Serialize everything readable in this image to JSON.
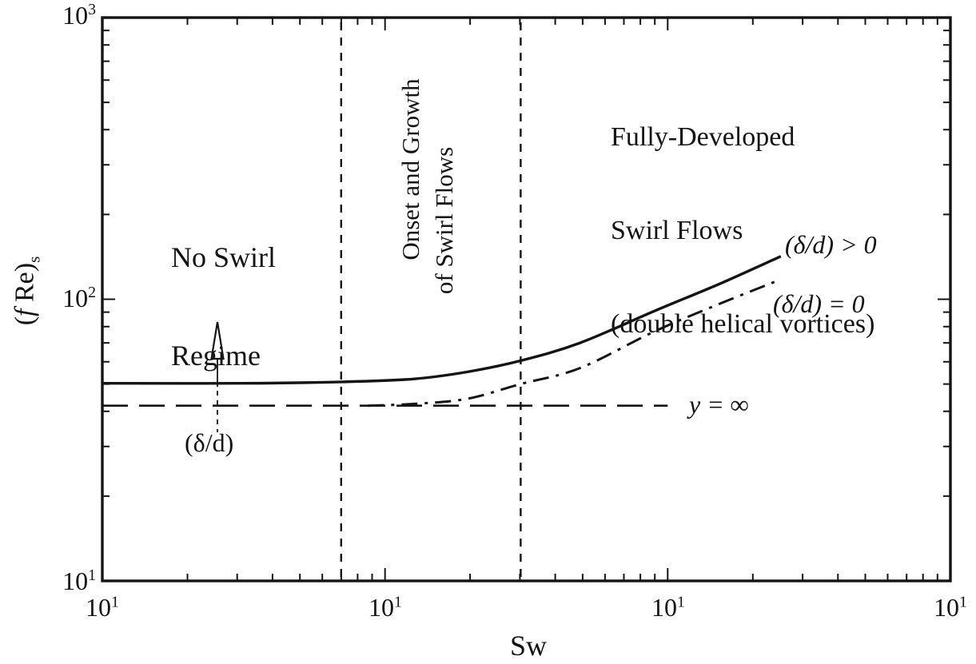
{
  "axes": {
    "x_title": "Sw",
    "y_title": {
      "open": "(",
      "f": "f",
      "rest": " Re)",
      "sub": "s"
    },
    "x_ticks": [
      {
        "base": "10",
        "exp": "1"
      },
      {
        "base": "10",
        "exp": "1"
      },
      {
        "base": "10",
        "exp": "1"
      },
      {
        "base": "10",
        "exp": "1"
      }
    ],
    "y_ticks": [
      {
        "base": "10",
        "exp": "3"
      },
      {
        "base": "10",
        "exp": "2"
      },
      {
        "base": "10",
        "exp": "1"
      }
    ]
  },
  "regions": {
    "no_swirl": {
      "line1": "No Swirl",
      "line2": "Regime"
    },
    "onset": {
      "line1": "Onset and Growth",
      "line2": "of Swirl Flows"
    },
    "fully_developed": {
      "line1": "Fully-Developed",
      "line2": "Swirl Flows",
      "line3": "(double helical vortices)"
    }
  },
  "annotations": {
    "curve_positive": "(δ/d) > 0",
    "curve_zero": "(δ/d) = 0",
    "y_infinity": "y = ∞",
    "delta_arrow_label": "(δ/d)"
  },
  "chart_data": {
    "type": "line",
    "title": "",
    "axes": {
      "x": {
        "title": "Sw",
        "scale": "log",
        "decades_shown": 3,
        "tick_labels": [
          "10^1",
          "10^1",
          "10^1",
          "10^1"
        ],
        "x_unit": "decades from left axis (printed tick labels all read 10^1)"
      },
      "y": {
        "title": "(f Re)_s",
        "scale": "log",
        "min": 10,
        "max": 1000,
        "tick_labels": [
          "10^1",
          "10^2",
          "10^3"
        ]
      }
    },
    "grid": "off",
    "legend": "inline curve labels",
    "region_boundaries_x_decades": [
      0.845,
      1.48
    ],
    "series": [
      {
        "name": "(δ/d) > 0",
        "line_style": "solid",
        "points_decade_value": [
          [
            0,
            50.3
          ],
          [
            0.5,
            50.3
          ],
          [
            0.85,
            50.9
          ],
          [
            1.1,
            52.1
          ],
          [
            1.29,
            55.2
          ],
          [
            1.48,
            60.5
          ],
          [
            1.69,
            70
          ],
          [
            1.955,
            91
          ],
          [
            2.18,
            113
          ],
          [
            2.4,
            142
          ]
        ]
      },
      {
        "name": "(δ/d) = 0",
        "line_style": "dash-dot",
        "points_decade_value": [
          [
            0.94,
            41.9
          ],
          [
            1.1,
            42.5
          ],
          [
            1.29,
            44.3
          ],
          [
            1.48,
            50
          ],
          [
            1.69,
            57
          ],
          [
            1.955,
            77
          ],
          [
            2.18,
            96
          ],
          [
            2.385,
            116
          ]
        ]
      },
      {
        "name": "y = ∞",
        "line_style": "long-dash",
        "points_decade_value": [
          [
            0,
            41.9
          ],
          [
            2.0,
            41.9
          ]
        ]
      }
    ]
  }
}
